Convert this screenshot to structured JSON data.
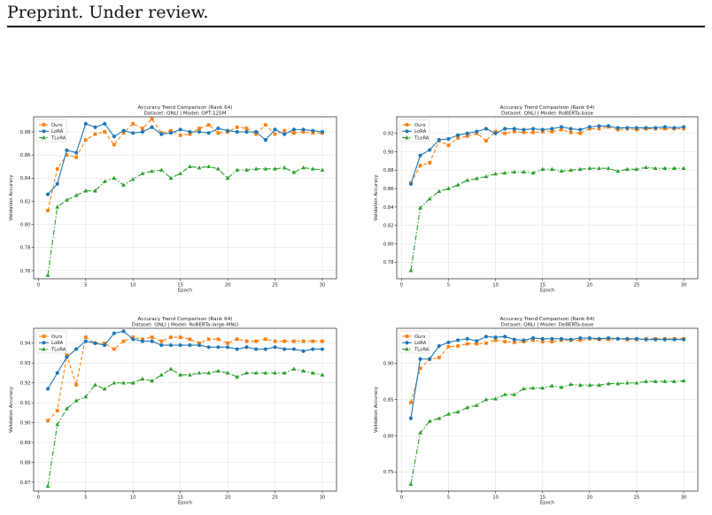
{
  "header": {
    "text": "Preprint. Under review."
  },
  "colors": {
    "Ours": "#ff7f0e",
    "LoRA": "#1f77b4",
    "TLoRA": "#2ca02c",
    "grid": "#dddddd"
  },
  "chart_data": [
    {
      "type": "line",
      "title": "Accuracy Trend Comparison (Rank 64)",
      "subtitle": "Dataset: QNLI | Model: OPT-125M",
      "xlabel": "Epoch",
      "ylabel": "Validation Accuracy",
      "xlim": [
        -0.5,
        31.5
      ],
      "ylim": [
        0.753,
        0.893
      ],
      "xticks": [
        0,
        5,
        10,
        15,
        20,
        25,
        30
      ],
      "xtick_labels": [
        "0",
        "5",
        "10",
        "15",
        "20",
        "25",
        "30"
      ],
      "yticks": [
        0.76,
        0.78,
        0.8,
        0.82,
        0.84,
        0.86,
        0.88
      ],
      "ytick_labels": [
        "0.76",
        "0.78",
        "0.80",
        "0.82",
        "0.84",
        "0.86",
        "0.88"
      ],
      "grid": true,
      "legend": "top-left",
      "x": [
        1,
        2,
        3,
        4,
        5,
        6,
        7,
        8,
        9,
        10,
        11,
        12,
        13,
        14,
        15,
        16,
        17,
        18,
        19,
        20,
        21,
        22,
        23,
        24,
        25,
        26,
        27,
        28,
        29,
        30
      ],
      "series": [
        {
          "name": "Ours",
          "values": [
            0.812,
            0.848,
            0.86,
            0.858,
            0.873,
            0.878,
            0.88,
            0.869,
            0.879,
            0.887,
            0.883,
            0.891,
            0.879,
            0.881,
            0.877,
            0.878,
            0.883,
            0.886,
            0.879,
            0.88,
            0.884,
            0.883,
            0.878,
            0.886,
            0.878,
            0.881,
            0.879,
            0.88,
            0.879,
            0.879
          ]
        },
        {
          "name": "LoRA",
          "values": [
            0.826,
            0.835,
            0.864,
            0.862,
            0.887,
            0.884,
            0.887,
            0.876,
            0.881,
            0.879,
            0.88,
            0.884,
            0.878,
            0.879,
            0.882,
            0.88,
            0.88,
            0.879,
            0.883,
            0.881,
            0.88,
            0.88,
            0.88,
            0.873,
            0.882,
            0.878,
            0.882,
            0.882,
            0.881,
            0.88
          ]
        },
        {
          "name": "TLoRA",
          "values": [
            0.756,
            0.815,
            0.821,
            0.825,
            0.829,
            0.829,
            0.837,
            0.84,
            0.834,
            0.839,
            0.844,
            0.846,
            0.847,
            0.84,
            0.844,
            0.85,
            0.849,
            0.85,
            0.848,
            0.84,
            0.847,
            0.847,
            0.848,
            0.848,
            0.848,
            0.849,
            0.845,
            0.849,
            0.848,
            0.847
          ]
        }
      ]
    },
    {
      "type": "line",
      "title": "Accuracy Trend Comparison (Rank 64)",
      "subtitle": "Dataset: QNLI | Model: RoBERTa-base",
      "xlabel": "Epoch",
      "ylabel": "Validation Accuracy",
      "xlim": [
        -0.5,
        31.5
      ],
      "ylim": [
        0.762,
        0.938
      ],
      "xticks": [
        0,
        5,
        10,
        15,
        20,
        25,
        30
      ],
      "xtick_labels": [
        "0",
        "5",
        "10",
        "15",
        "20",
        "25",
        "30"
      ],
      "yticks": [
        0.78,
        0.8,
        0.82,
        0.84,
        0.86,
        0.88,
        0.9,
        0.92
      ],
      "ytick_labels": [
        "0.78",
        "0.80",
        "0.82",
        "0.84",
        "0.86",
        "0.88",
        "0.90",
        "0.92"
      ],
      "grid": true,
      "legend": "top-left",
      "x": [
        1,
        2,
        3,
        4,
        5,
        6,
        7,
        8,
        9,
        10,
        11,
        12,
        13,
        14,
        15,
        16,
        17,
        18,
        19,
        20,
        21,
        22,
        23,
        24,
        25,
        26,
        27,
        28,
        29,
        30
      ],
      "series": [
        {
          "name": "Ours",
          "values": [
            0.866,
            0.885,
            0.888,
            0.912,
            0.907,
            0.915,
            0.917,
            0.92,
            0.912,
            0.922,
            0.92,
            0.922,
            0.921,
            0.921,
            0.922,
            0.922,
            0.924,
            0.921,
            0.92,
            0.925,
            0.925,
            0.927,
            0.924,
            0.925,
            0.924,
            0.925,
            0.925,
            0.925,
            0.925,
            0.925
          ]
        },
        {
          "name": "LoRA",
          "values": [
            0.865,
            0.896,
            0.902,
            0.913,
            0.914,
            0.918,
            0.92,
            0.922,
            0.925,
            0.92,
            0.925,
            0.925,
            0.924,
            0.925,
            0.924,
            0.925,
            0.927,
            0.925,
            0.924,
            0.927,
            0.928,
            0.928,
            0.926,
            0.926,
            0.926,
            0.926,
            0.926,
            0.927,
            0.926,
            0.927
          ]
        },
        {
          "name": "TLoRA",
          "values": [
            0.771,
            0.839,
            0.849,
            0.857,
            0.86,
            0.864,
            0.869,
            0.871,
            0.873,
            0.876,
            0.877,
            0.878,
            0.878,
            0.877,
            0.881,
            0.881,
            0.879,
            0.88,
            0.881,
            0.882,
            0.882,
            0.882,
            0.879,
            0.881,
            0.881,
            0.883,
            0.882,
            0.882,
            0.882,
            0.882
          ]
        }
      ]
    },
    {
      "type": "line",
      "title": "Accuracy Trend Comparison (Rank 64)",
      "subtitle": "Dataset: QNLI | Model: RoBERTa-large-MNLI",
      "xlabel": "Epoch",
      "ylabel": "Validation Accuracy",
      "xlim": [
        -0.5,
        31.5
      ],
      "ylim": [
        0.8655,
        0.9475
      ],
      "xticks": [
        0,
        5,
        10,
        15,
        20,
        25,
        30
      ],
      "xtick_labels": [
        "0",
        "5",
        "10",
        "15",
        "20",
        "25",
        "30"
      ],
      "yticks": [
        0.87,
        0.88,
        0.89,
        0.9,
        0.91,
        0.92,
        0.93,
        0.94
      ],
      "ytick_labels": [
        "0.87",
        "0.88",
        "0.89",
        "0.90",
        "0.91",
        "0.92",
        "0.93",
        "0.94"
      ],
      "grid": true,
      "legend": "top-left",
      "x": [
        1,
        2,
        3,
        4,
        5,
        6,
        7,
        8,
        9,
        10,
        11,
        12,
        13,
        14,
        15,
        16,
        17,
        18,
        19,
        20,
        21,
        22,
        23,
        24,
        25,
        26,
        27,
        28,
        29,
        30
      ],
      "series": [
        {
          "name": "Ours",
          "values": [
            0.901,
            0.906,
            0.934,
            0.919,
            0.943,
            0.94,
            0.94,
            0.937,
            0.941,
            0.943,
            0.942,
            0.943,
            0.941,
            0.943,
            0.943,
            0.942,
            0.94,
            0.942,
            0.942,
            0.94,
            0.942,
            0.941,
            0.941,
            0.942,
            0.941,
            0.941,
            0.941,
            0.941,
            0.941,
            0.941
          ]
        },
        {
          "name": "LoRA",
          "values": [
            0.917,
            0.925,
            0.933,
            0.937,
            0.941,
            0.94,
            0.939,
            0.945,
            0.946,
            0.942,
            0.941,
            0.941,
            0.939,
            0.939,
            0.939,
            0.939,
            0.939,
            0.938,
            0.938,
            0.938,
            0.937,
            0.938,
            0.937,
            0.937,
            0.938,
            0.937,
            0.937,
            0.936,
            0.937,
            0.937
          ]
        },
        {
          "name": "TLoRA",
          "values": [
            0.868,
            0.899,
            0.907,
            0.911,
            0.913,
            0.919,
            0.917,
            0.92,
            0.92,
            0.92,
            0.922,
            0.921,
            0.924,
            0.927,
            0.924,
            0.924,
            0.925,
            0.925,
            0.926,
            0.925,
            0.923,
            0.925,
            0.925,
            0.925,
            0.925,
            0.925,
            0.927,
            0.926,
            0.925,
            0.924
          ]
        }
      ]
    },
    {
      "type": "line",
      "title": "Accuracy Trend Comparison (Rank 64)",
      "subtitle": "Dataset: QNLI | Model: DeBERTa-base",
      "xlabel": "Epoch",
      "ylabel": "Validation Accuracy",
      "xlim": [
        -0.5,
        31.5
      ],
      "ylim": [
        0.7235,
        0.9485
      ],
      "xticks": [
        0,
        5,
        10,
        15,
        20,
        25,
        30
      ],
      "xtick_labels": [
        "0",
        "5",
        "10",
        "15",
        "20",
        "25",
        "30"
      ],
      "yticks": [
        0.75,
        0.8,
        0.85,
        0.9
      ],
      "ytick_labels": [
        "0.75",
        "0.80",
        "0.85",
        "0.90"
      ],
      "grid": true,
      "legend": "top-left",
      "x": [
        1,
        2,
        3,
        4,
        5,
        6,
        7,
        8,
        9,
        10,
        11,
        12,
        13,
        14,
        15,
        16,
        17,
        18,
        19,
        20,
        21,
        22,
        23,
        24,
        25,
        26,
        27,
        28,
        29,
        30
      ],
      "series": [
        {
          "name": "Ours",
          "values": [
            0.846,
            0.893,
            0.906,
            0.908,
            0.923,
            0.924,
            0.927,
            0.927,
            0.928,
            0.932,
            0.93,
            0.929,
            0.93,
            0.932,
            0.93,
            0.93,
            0.932,
            0.932,
            0.932,
            0.934,
            0.933,
            0.933,
            0.934,
            0.933,
            0.933,
            0.934,
            0.934,
            0.934,
            0.934,
            0.934
          ]
        },
        {
          "name": "LoRA",
          "values": [
            0.824,
            0.906,
            0.906,
            0.924,
            0.929,
            0.932,
            0.934,
            0.931,
            0.937,
            0.936,
            0.937,
            0.933,
            0.932,
            0.935,
            0.934,
            0.934,
            0.934,
            0.933,
            0.935,
            0.935,
            0.934,
            0.935,
            0.934,
            0.934,
            0.934,
            0.933,
            0.933,
            0.933,
            0.933,
            0.933
          ]
        },
        {
          "name": "TLoRA",
          "values": [
            0.733,
            0.804,
            0.82,
            0.824,
            0.83,
            0.833,
            0.839,
            0.842,
            0.85,
            0.851,
            0.857,
            0.857,
            0.865,
            0.866,
            0.866,
            0.869,
            0.867,
            0.871,
            0.87,
            0.87,
            0.87,
            0.872,
            0.872,
            0.873,
            0.873,
            0.875,
            0.875,
            0.875,
            0.875,
            0.876
          ]
        }
      ]
    }
  ]
}
